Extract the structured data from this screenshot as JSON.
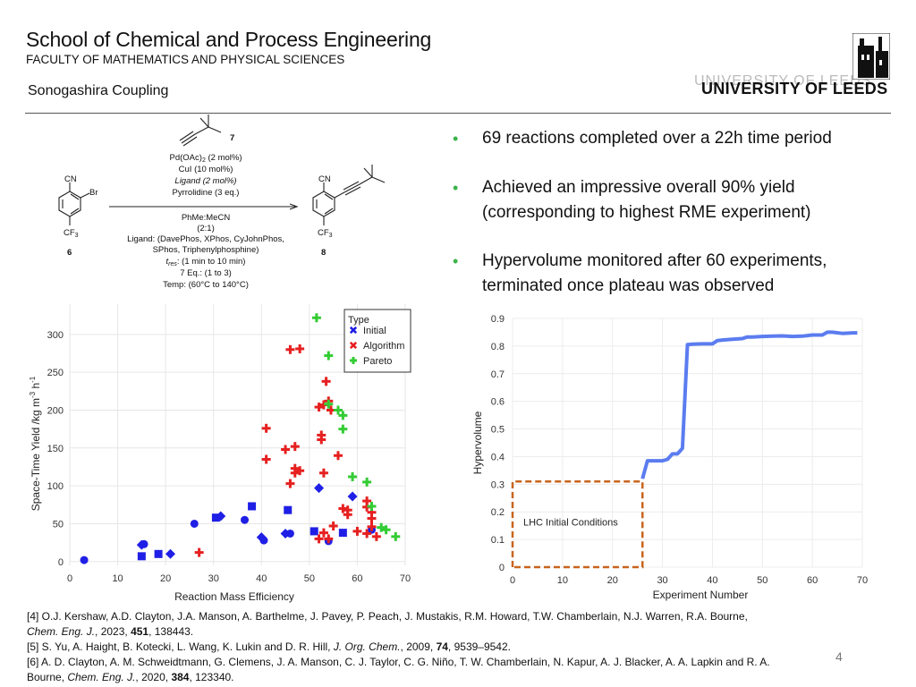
{
  "header": {
    "title": "School of Chemical and Process Engineering",
    "subtitle": "FACULTY OF MATHEMATICS AND PHYSICAL SCIENCES",
    "section": "Sonogashira Coupling",
    "university": "UNIVERSITY OF LEEDS"
  },
  "bullets": [
    "69 reactions completed over a 22h time period",
    "Achieved an impressive overall 90% yield (corresponding to highest RME experiment)",
    "Hypervolume monitored after 60 experiments, terminated once plateau was observed"
  ],
  "scheme": {
    "reagent_label": "7",
    "reactant_label": "6",
    "product_label": "8",
    "cn": "CN",
    "br": "Br",
    "cf3": "CF",
    "cf3_sub": "3",
    "above": [
      "Pd(OAc)",
      "CuI (10 mol%)",
      "Ligand (2 mol%)",
      "Pyrrolidine (3 eq.)"
    ],
    "pd_suffix": " (2 mol%)",
    "pd_sub": "2",
    "below": [
      "PhMe:MeCN",
      "(2:1)",
      "Ligand: (DavePhos, XPhos, CyJohnPhos,",
      "SPhos, Triphenylphosphine)",
      "t",
      "res",
      ": (1 min to 10 min)",
      "7 Eq.: (1 to 3)",
      "Temp: (60°C to 140°C)"
    ]
  },
  "chart_data": [
    {
      "type": "scatter",
      "xlabel": "Reaction Mass Efficiency",
      "ylabel": "Space-Time Yield /kg m-3 h-1",
      "xlim": [
        0,
        70
      ],
      "ylim": [
        -5,
        340
      ],
      "xticks": [
        "0",
        "10",
        "20",
        "30",
        "40",
        "50",
        "60",
        "70"
      ],
      "yticks": [
        "0",
        "50",
        "100",
        "150",
        "200",
        "250",
        "300"
      ],
      "legend": {
        "title": "Type",
        "placement": "top-right"
      },
      "series": [
        {
          "name": "Initial",
          "color": "#1f1fe6",
          "points": [
            [
              3,
              2
            ],
            [
              15,
              7
            ],
            [
              15,
              22
            ],
            [
              15.5,
              23
            ],
            [
              18.5,
              10
            ],
            [
              21,
              10
            ],
            [
              26,
              50
            ],
            [
              30.5,
              58
            ],
            [
              31.5,
              60
            ],
            [
              36.5,
              55
            ],
            [
              38,
              73
            ],
            [
              40,
              32
            ],
            [
              40.5,
              28
            ],
            [
              45.5,
              68
            ],
            [
              45,
              37
            ],
            [
              46,
              37
            ],
            [
              51,
              40
            ],
            [
              52,
              97
            ],
            [
              54,
              27
            ],
            [
              57,
              38
            ],
            [
              59,
              86
            ],
            [
              63,
              42
            ]
          ]
        },
        {
          "name": "Algorithm",
          "color": "#e62020",
          "points": [
            [
              27,
              12
            ],
            [
              41,
              176
            ],
            [
              41,
              135
            ],
            [
              45,
              148
            ],
            [
              46,
              280
            ],
            [
              48,
              281
            ],
            [
              47,
              152
            ],
            [
              47,
              117
            ],
            [
              47,
              123
            ],
            [
              48,
              120
            ],
            [
              46,
              103
            ],
            [
              52,
              30
            ],
            [
              52.5,
              161
            ],
            [
              52.5,
              167
            ],
            [
              52,
              204
            ],
            [
              53,
              207
            ],
            [
              53,
              38
            ],
            [
              53,
              117
            ],
            [
              53.5,
              238
            ],
            [
              54,
              212
            ],
            [
              54,
              30
            ],
            [
              54.5,
              200
            ],
            [
              55,
              47
            ],
            [
              56,
              140
            ],
            [
              57,
              70
            ],
            [
              58,
              62
            ],
            [
              58,
              68
            ],
            [
              60,
              40
            ],
            [
              62,
              72
            ],
            [
              62,
              80
            ],
            [
              62,
              37
            ],
            [
              63,
              57
            ],
            [
              63,
              46
            ],
            [
              64,
              33
            ],
            [
              63,
              65
            ]
          ]
        },
        {
          "name": "Pareto",
          "color": "#33cc33",
          "points": [
            [
              51.5,
              322
            ],
            [
              54,
              272
            ],
            [
              54,
              208
            ],
            [
              56,
              200
            ],
            [
              57,
              193
            ],
            [
              57,
              175
            ],
            [
              59,
              112
            ],
            [
              62,
              105
            ],
            [
              63,
              73
            ],
            [
              65,
              45
            ],
            [
              66,
              42
            ],
            [
              68,
              33
            ]
          ]
        }
      ]
    },
    {
      "type": "line",
      "xlabel": "Experiment Number",
      "ylabel": "Hypervolume",
      "xlim": [
        0,
        70
      ],
      "ylim": [
        0,
        0.9
      ],
      "xticks": [
        "0",
        "10",
        "20",
        "30",
        "40",
        "50",
        "60",
        "70"
      ],
      "yticks": [
        "0",
        "0.1",
        "0.2",
        "0.3",
        "0.4",
        "0.5",
        "0.6",
        "0.7",
        "0.8",
        "0.9"
      ],
      "annotation": "LHC Initial Conditions",
      "lhc_region": {
        "x": [
          0,
          26
        ],
        "y": [
          0,
          0.31
        ]
      },
      "x": [
        26,
        27,
        28,
        29,
        30,
        31,
        32,
        33,
        34,
        35,
        36,
        38,
        40,
        41,
        42,
        44,
        46,
        47,
        48,
        50,
        52,
        54,
        56,
        58,
        60,
        62,
        63,
        64,
        66,
        68,
        69
      ],
      "values": [
        0.32,
        0.385,
        0.385,
        0.385,
        0.385,
        0.39,
        0.41,
        0.41,
        0.43,
        0.805,
        0.807,
        0.808,
        0.808,
        0.82,
        0.822,
        0.825,
        0.827,
        0.833,
        0.833,
        0.835,
        0.836,
        0.837,
        0.835,
        0.836,
        0.84,
        0.84,
        0.85,
        0.85,
        0.846,
        0.848,
        0.848
      ],
      "color": "#5b7cf0"
    }
  ],
  "references": {
    "r4a": "[4] O.J. Kershaw, A.D. Clayton, J.A. Manson, A. Barthelme, J. Pavey, P. Peach, J. Mustakis, R.M. Howard, T.W. Chamberlain, N.J. Warren, R.A. Bourne,",
    "r4b_j": "Chem. Eng. J.",
    "r4b_pre": ", 2023, ",
    "r4b_vol": "451",
    "r4b_post": ", 138443.",
    "r5_pre": "[5] S. Yu, A. Haight, B. Kotecki, L. Wang, K. Lukin and D. R. Hill, ",
    "r5_j": "J. Org. Chem.",
    "r5_mid": ", 2009, ",
    "r5_vol": "74",
    "r5_post": ", 9539–9542.",
    "r6a": "[6] A. D. Clayton, A. M. Schweidtmann, G. Clemens, J. A. Manson, C. J. Taylor, C. G. Niño, T. W. Chamberlain, N. Kapur, A. J. Blacker, A. A. Lapkin and R. A.",
    "r6b_pre": "Bourne, ",
    "r6b_j": "Chem. Eng. J.",
    "r6b_mid": ", 2020, ",
    "r6b_vol": "384",
    "r6b_post": ", 123340."
  },
  "page_number": "4"
}
